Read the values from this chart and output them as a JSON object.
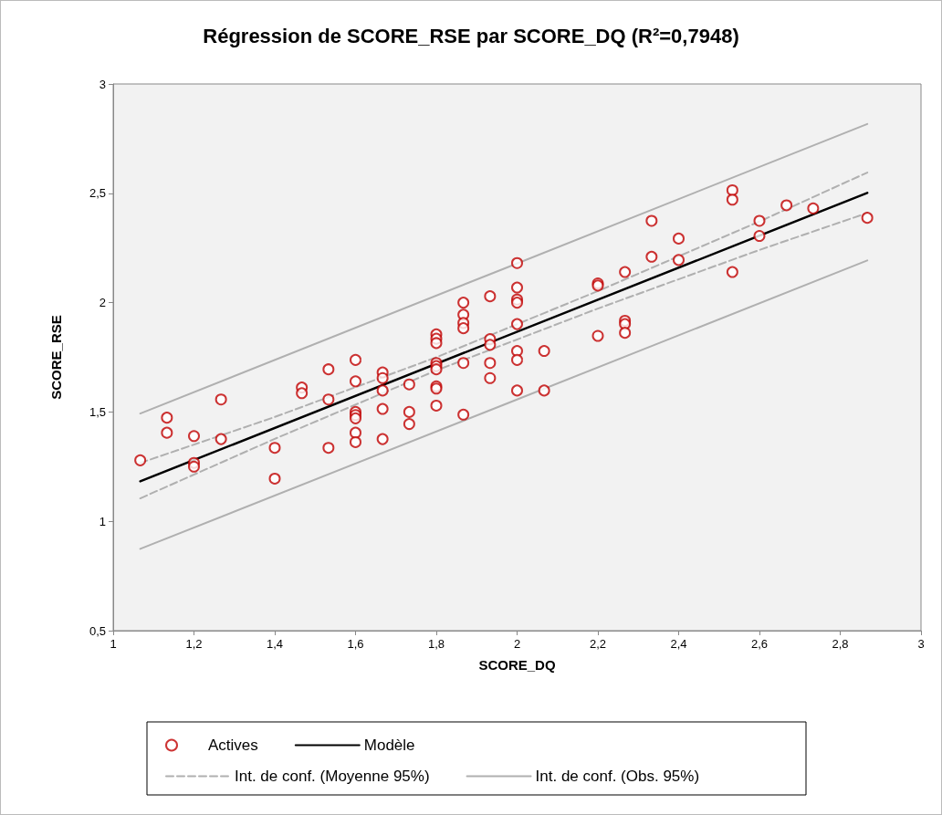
{
  "chart_data": {
    "type": "scatter",
    "title": "Régression de SCORE_RSE par SCORE_DQ (R²=0,7948)",
    "xlabel": "SCORE_DQ",
    "ylabel": "SCORE_RSE",
    "xlim": [
      1,
      3
    ],
    "xticks": [
      1,
      {
        "value": 1.2,
        "label": "1,2"
      },
      {
        "value": 1.4,
        "label": "1,4"
      },
      {
        "value": 1.6,
        "label": "1,6"
      },
      {
        "value": 1.8,
        "label": "1,8"
      },
      2,
      {
        "value": 2.2,
        "label": "2,2"
      },
      {
        "value": 2.4,
        "label": "2,4"
      },
      {
        "value": 2.6,
        "label": "2,6"
      },
      {
        "value": 2.8,
        "label": "2,8"
      },
      3
    ],
    "ylim": [
      0.5,
      3
    ],
    "yticks": [
      {
        "value": 0.5,
        "label": "0,5"
      },
      1,
      {
        "value": 1.5,
        "label": "1,5"
      },
      2,
      {
        "value": 2.5,
        "label": "2,5"
      },
      3
    ],
    "grid": false,
    "legend": "bottom",
    "series": [
      {
        "name": "Actives",
        "type": "scatter",
        "marker": "circle",
        "color": "#c00000",
        "x": [
          1.067,
          1.133,
          1.133,
          1.2,
          1.2,
          1.2,
          1.267,
          1.267,
          1.4,
          1.4,
          1.467,
          1.467,
          1.533,
          1.533,
          1.533,
          1.6,
          1.6,
          1.6,
          1.6,
          1.6,
          1.6,
          1.6,
          1.667,
          1.667,
          1.667,
          1.667,
          1.667,
          1.733,
          1.733,
          1.733,
          1.8,
          1.8,
          1.8,
          1.8,
          1.8,
          1.8,
          1.8,
          1.8,
          1.8,
          1.867,
          1.867,
          1.867,
          1.867,
          1.867,
          1.867,
          1.933,
          1.933,
          1.933,
          1.933,
          1.933,
          2,
          2,
          2,
          2,
          2,
          2,
          2,
          2,
          2.067,
          2.067,
          2.2,
          2.2,
          2.2,
          2.267,
          2.267,
          2.267,
          2.267,
          2.333,
          2.333,
          2.4,
          2.4,
          2.533,
          2.533,
          2.533,
          2.6,
          2.6,
          2.667,
          2.733,
          2.867
        ],
        "values": [
          1.279,
          1.474,
          1.405,
          1.39,
          1.267,
          1.25,
          1.557,
          1.376,
          1.336,
          1.195,
          1.612,
          1.586,
          1.695,
          1.557,
          1.336,
          1.738,
          1.64,
          1.5,
          1.486,
          1.471,
          1.405,
          1.362,
          1.681,
          1.655,
          1.598,
          1.514,
          1.376,
          1.626,
          1.5,
          1.445,
          1.855,
          1.835,
          1.815,
          1.724,
          1.71,
          1.695,
          1.617,
          1.607,
          1.529,
          2.0,
          1.945,
          1.907,
          1.883,
          1.724,
          1.488,
          2.029,
          1.833,
          1.807,
          1.724,
          1.655,
          2.181,
          2.069,
          2.014,
          2.0,
          1.902,
          1.779,
          1.738,
          1.598,
          1.779,
          1.598,
          2.088,
          2.078,
          1.848,
          2.14,
          1.917,
          1.902,
          1.862,
          2.374,
          2.21,
          2.293,
          2.195,
          2.514,
          2.471,
          2.14,
          2.374,
          2.305,
          2.445,
          2.431,
          2.388
        ]
      },
      {
        "name": "Modèle",
        "type": "line",
        "marker": "none",
        "line_style": "solid",
        "color": "#000000",
        "x": [
          1.067,
          2.867
        ],
        "values": [
          1.183,
          2.502
        ]
      },
      {
        "name": "Int. de conf. (Moyenne 95%)",
        "type": "line",
        "marker": "none",
        "line_style": "dashed",
        "color": "#b0b0b0",
        "x": [
          1.067,
          1.4,
          1.8,
          2.2,
          2.6,
          2.867
        ],
        "values": [
          1.267,
          1.477,
          1.75,
          2.053,
          2.371,
          2.595
        ]
      },
      {
        "type": "line",
        "marker": "none",
        "line_style": "dashed",
        "color": "#b0b0b0",
        "x": [
          1.067,
          1.4,
          1.8,
          2.2,
          2.6,
          2.867
        ],
        "values": [
          1.105,
          1.377,
          1.69,
          1.973,
          2.241,
          2.41
        ]
      },
      {
        "name": "Int. de conf. (Obs. 95%)",
        "type": "line",
        "marker": "none",
        "line_style": "solid",
        "color": "#b0b0b0",
        "x": [
          1.067,
          1.967,
          2.867
        ],
        "values": [
          1.493,
          2.155,
          2.817
        ]
      },
      {
        "type": "line",
        "marker": "none",
        "line_style": "solid",
        "color": "#b0b0b0",
        "x": [
          1.067,
          1.967,
          2.867
        ],
        "values": [
          0.874,
          1.533,
          2.193
        ]
      }
    ]
  }
}
